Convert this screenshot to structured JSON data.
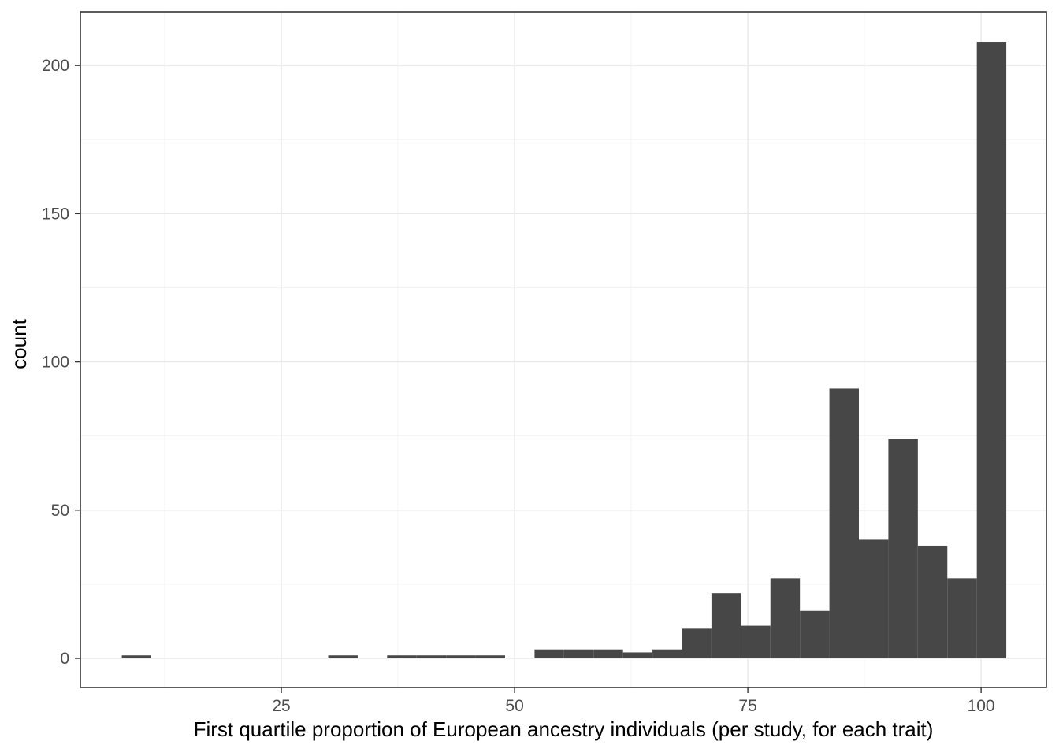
{
  "chart_data": {
    "type": "bar",
    "subtype": "histogram",
    "xlabel": "First quartile proportion of European ancestry individuals (per study, for each trait)",
    "ylabel": "count",
    "bar_color": "#474747",
    "bins": {
      "start": 7.9,
      "width": 3.16,
      "counts": [
        1,
        0,
        0,
        0,
        0,
        0,
        0,
        1,
        0,
        1,
        1,
        1,
        1,
        0,
        3,
        3,
        3,
        2,
        3,
        10,
        22,
        11,
        27,
        16,
        91,
        40,
        74,
        38,
        27,
        208
      ]
    },
    "x_axis": {
      "ticks": [
        25,
        50,
        75,
        100
      ],
      "minor_ticks": [
        12.5,
        37.5,
        62.5,
        87.5
      ],
      "domain": [
        3.46,
        107.0
      ]
    },
    "y_axis": {
      "ticks": [
        0,
        50,
        100,
        150,
        200
      ],
      "minor_ticks": [
        25,
        75,
        125,
        175
      ],
      "domain": [
        -9.83,
        218.1
      ]
    },
    "grid": true,
    "legend_position": "none",
    "colors": {
      "axis_text": "#4d4d4d",
      "title_text": "#000000",
      "grid_major": "#e9e9e9",
      "grid_minor": "#f4f4f4",
      "panel_border": "#333333",
      "tick_mark": "#333333",
      "panel_background": "#ffffff"
    }
  }
}
